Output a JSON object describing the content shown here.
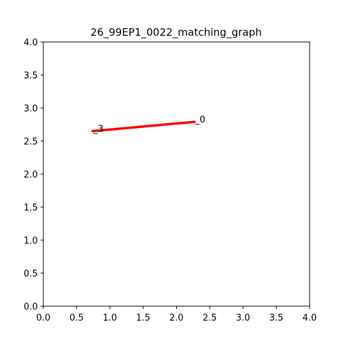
{
  "chart_data": {
    "type": "line",
    "title": "26_99EP1_0022_matching_graph",
    "xlabel": "",
    "ylabel": "",
    "xlim": [
      0,
      4
    ],
    "ylim": [
      0,
      4
    ],
    "x_ticks": [
      "0.0",
      "0.5",
      "1.0",
      "1.5",
      "2.0",
      "2.5",
      "3.0",
      "3.5",
      "4.0"
    ],
    "y_ticks": [
      "0.0",
      "0.5",
      "1.0",
      "1.5",
      "2.0",
      "2.5",
      "3.0",
      "3.5",
      "4.0"
    ],
    "grid": false,
    "nodes": [
      {
        "label": "_0",
        "x": 2.27,
        "y": 2.79
      },
      {
        "label": "_3",
        "x": 0.74,
        "y": 2.65
      }
    ],
    "edges": [
      {
        "from": 1,
        "to": 0,
        "color": "#ff0000"
      }
    ]
  }
}
